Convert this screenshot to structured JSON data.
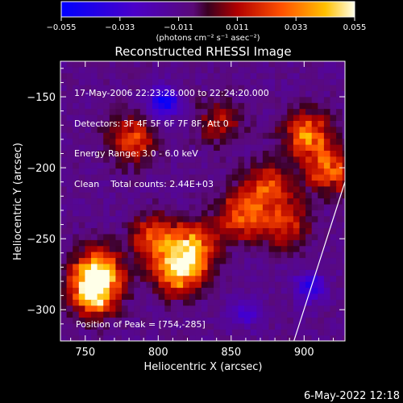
{
  "chart_data": {
    "type": "heatmap",
    "title": "Reconstructed RHESSI Image",
    "xlabel": "Heliocentric X (arcsec)",
    "ylabel": "Heliocentric Y (arcsec)",
    "xlim": [
      733,
      928
    ],
    "ylim": [
      -322,
      -125
    ],
    "x_ticks": [
      750,
      800,
      850,
      900
    ],
    "y_ticks": [
      -150,
      -200,
      -250,
      -300
    ],
    "colorbar": {
      "ticks": [
        "-0.055",
        "-0.033",
        "-0.011",
        "0.011",
        "0.033",
        "0.055"
      ],
      "range": [
        -0.055,
        0.055
      ],
      "units_label": "(photons cm⁻² s⁻¹ asec⁻²)"
    },
    "peak": {
      "x": 754,
      "y": -285
    },
    "limb_line": {
      "x": [
        893,
        928
      ],
      "y": [
        -322,
        -210
      ]
    },
    "hot_regions": [
      {
        "x": 754,
        "y": -285,
        "value": 0.055
      },
      {
        "x": 757,
        "y": -270,
        "value": 0.04
      },
      {
        "x": 812,
        "y": -270,
        "value": 0.05
      },
      {
        "x": 822,
        "y": -253,
        "value": 0.035
      },
      {
        "x": 796,
        "y": -248,
        "value": 0.028
      },
      {
        "x": 780,
        "y": -178,
        "value": 0.025
      },
      {
        "x": 900,
        "y": -175,
        "value": 0.035
      },
      {
        "x": 915,
        "y": -200,
        "value": 0.03
      },
      {
        "x": 855,
        "y": -232,
        "value": 0.03
      },
      {
        "x": 873,
        "y": -212,
        "value": 0.028
      },
      {
        "x": 840,
        "y": -165,
        "value": 0.012
      },
      {
        "x": 885,
        "y": -238,
        "value": 0.022
      }
    ],
    "cold_regions": [
      {
        "x": 802,
        "y": -152,
        "value": -0.04
      },
      {
        "x": 902,
        "y": -282,
        "value": -0.03
      },
      {
        "x": 858,
        "y": -300,
        "value": -0.02
      }
    ]
  },
  "info_lines": [
    "17-May-2006 22:23:28.000 to 22:24:20.000",
    "Detectors: 3F 4F 5F 6F 7F 8F, Att 0",
    "Energy Range: 3.0 - 6.0 keV",
    "Clean    Total counts: 2.44E+03"
  ],
  "peak_label": "Position of Peak = [754,-285]",
  "footer_timestamp": "6-May-2022 12:18"
}
